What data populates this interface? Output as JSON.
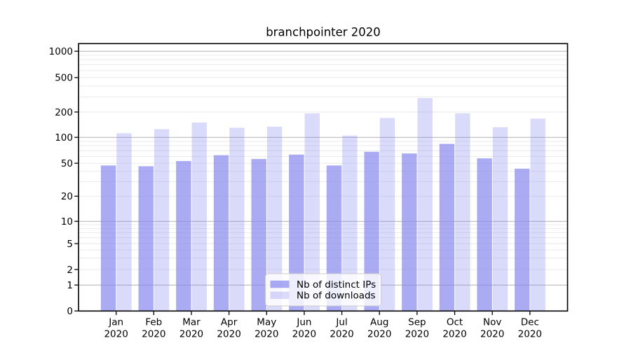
{
  "chart_data": {
    "type": "bar",
    "title": "branchpointer 2020",
    "categories": [
      "Jan",
      "Feb",
      "Mar",
      "Apr",
      "May",
      "Jun",
      "Jul",
      "Aug",
      "Sep",
      "Oct",
      "Nov",
      "Dec"
    ],
    "category_year": "2020",
    "series": [
      {
        "name": "Nb of distinct IPs",
        "color": "#8888ee",
        "opacity": 0.71,
        "values": [
          47,
          46,
          53,
          62,
          56,
          63,
          47,
          68,
          65,
          84,
          57,
          43
        ]
      },
      {
        "name": "Nb of downloads",
        "color": "#8888ee",
        "opacity": 0.31,
        "values": [
          112,
          125,
          150,
          130,
          134,
          193,
          105,
          170,
          290,
          193,
          132,
          167
        ]
      }
    ],
    "xlabel": "",
    "ylabel": "",
    "yscale": "symlog",
    "y_ticks": [
      0,
      1,
      2,
      5,
      10,
      20,
      50,
      100,
      200,
      500,
      1000
    ],
    "ylim": [
      0,
      1250
    ],
    "grid": true,
    "legend_position": "lower center"
  },
  "colors": {
    "background": "#ffffff",
    "axis": "#000000",
    "major_grid": "#b0b0b0",
    "minor_grid": "#e8e8e8",
    "legend_bg": "#ffffff",
    "legend_border": "#cccccc",
    "text": "#000000"
  }
}
